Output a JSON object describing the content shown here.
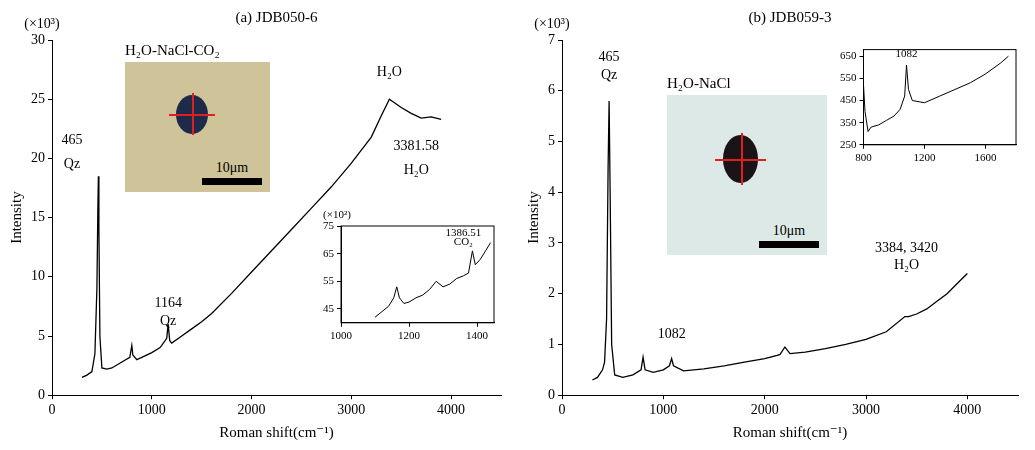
{
  "chart_data": [
    {
      "type": "line",
      "title": "(a) JDB050-6",
      "fluid": "H₂O-NaCl-CO₂",
      "x_label": "Roman shift(cm⁻¹)",
      "y_label": "Intensity",
      "y_multiplier": "(×10³)",
      "x": [
        300,
        350,
        400,
        430,
        450,
        460,
        465,
        470,
        480,
        500,
        550,
        600,
        700,
        780,
        800,
        810,
        850,
        900,
        1000,
        1080,
        1100,
        1150,
        1164,
        1180,
        1200,
        1300,
        1400,
        1500,
        1600,
        1800,
        2000,
        2200,
        2400,
        2600,
        2800,
        3000,
        3200,
        3300,
        3381.58,
        3450,
        3500,
        3600,
        3700,
        3800,
        3900
      ],
      "values": [
        1.5,
        1.7,
        2.0,
        3.5,
        9,
        16,
        18.5,
        14,
        5,
        2.3,
        2.2,
        2.3,
        2.8,
        3.2,
        4.2,
        3.4,
        3.0,
        3.2,
        3.6,
        4.0,
        4.2,
        4.8,
        6.0,
        4.6,
        4.4,
        5.0,
        5.6,
        6.2,
        6.9,
        8.6,
        10.4,
        12.2,
        14.0,
        15.8,
        17.6,
        19.6,
        21.8,
        23.6,
        25.0,
        24.6,
        24.3,
        23.8,
        23.4,
        23.5,
        23.3
      ],
      "color": "#000000",
      "xlim": [
        0,
        4500
      ],
      "ylim": [
        0,
        30
      ],
      "xticks": [
        0,
        1000,
        2000,
        3000,
        4000
      ],
      "yticks": [
        0,
        5,
        10,
        15,
        20,
        25,
        30
      ],
      "grid": false,
      "annotations": [
        {
          "text": "465",
          "x": 200,
          "y": 21.5
        },
        {
          "text": "Qz",
          "x": 200,
          "y": 19.5
        },
        {
          "text": "1164",
          "x": 1164,
          "y": 7.8
        },
        {
          "text": "Qz",
          "x": 1164,
          "y": 6.2
        },
        {
          "text": "H₂O",
          "x": 3381.58,
          "y": 27.3
        },
        {
          "text": "3381.58",
          "x": 3650,
          "y": 21
        },
        {
          "text": "H₂O",
          "x": 3650,
          "y": 19
        }
      ],
      "photo": {
        "scale_bar": "10μm"
      },
      "inset": {
        "y_multiplier": "(×10²)",
        "x": [
          1100,
          1120,
          1140,
          1155,
          1164,
          1172,
          1185,
          1200,
          1220,
          1240,
          1260,
          1280,
          1300,
          1320,
          1340,
          1360,
          1375,
          1386.51,
          1395,
          1410,
          1425,
          1440
        ],
        "values": [
          42,
          44,
          46,
          49,
          53,
          49,
          47,
          47.5,
          49,
          50,
          52,
          55,
          53,
          54,
          56,
          57,
          58,
          66,
          61,
          63,
          66,
          69
        ],
        "xlim": [
          1000,
          1450
        ],
        "ylim": [
          40,
          75
        ],
        "xticks": [
          1000,
          1200,
          1400
        ],
        "yticks": [
          45,
          55,
          65,
          75
        ],
        "annotations": [
          {
            "text": "1386.51",
            "x": 1360,
            "y": 72.5
          },
          {
            "text": "CO₂",
            "x": 1360,
            "y": 69
          }
        ]
      }
    },
    {
      "type": "line",
      "title": "(b) JDB059-3",
      "fluid": "H₂O-NaCl",
      "x_label": "Roman shift(cm⁻¹)",
      "y_label": "Intensity",
      "y_multiplier": "(×10³)",
      "x": [
        300,
        350,
        400,
        420,
        440,
        455,
        465,
        475,
        490,
        520,
        600,
        700,
        780,
        800,
        820,
        900,
        1000,
        1060,
        1082,
        1100,
        1200,
        1400,
        1600,
        1800,
        2000,
        2150,
        2200,
        2250,
        2400,
        2600,
        2800,
        3000,
        3200,
        3384,
        3420,
        3500,
        3600,
        3700,
        3800,
        3900,
        4000
      ],
      "values": [
        0.3,
        0.35,
        0.5,
        0.65,
        1.5,
        4.5,
        5.8,
        4.0,
        1.0,
        0.4,
        0.35,
        0.4,
        0.5,
        0.75,
        0.5,
        0.45,
        0.5,
        0.58,
        0.72,
        0.58,
        0.48,
        0.52,
        0.58,
        0.65,
        0.72,
        0.8,
        0.95,
        0.82,
        0.85,
        0.92,
        1.0,
        1.1,
        1.25,
        1.55,
        1.55,
        1.6,
        1.7,
        1.85,
        2.0,
        2.2,
        2.4
      ],
      "color": "#000000",
      "xlim": [
        0,
        4500
      ],
      "ylim": [
        0,
        7
      ],
      "xticks": [
        0,
        1000,
        2000,
        3000,
        4000
      ],
      "yticks": [
        0,
        1,
        2,
        3,
        4,
        5,
        6,
        7
      ],
      "grid": false,
      "annotations": [
        {
          "text": "465",
          "x": 465,
          "y": 6.65
        },
        {
          "text": "Qz",
          "x": 465,
          "y": 6.3
        },
        {
          "text": "1082",
          "x": 1082,
          "y": 1.2
        },
        {
          "text": "3384, 3420",
          "x": 3400,
          "y": 2.9
        },
        {
          "text": "H₂O",
          "x": 3400,
          "y": 2.55
        }
      ],
      "photo": {
        "scale_bar": "10μm"
      },
      "inset": {
        "x": [
          800,
          810,
          830,
          850,
          900,
          950,
          1000,
          1040,
          1070,
          1082,
          1095,
          1120,
          1200,
          1300,
          1400,
          1500,
          1600,
          1700,
          1750
        ],
        "values": [
          520,
          400,
          310,
          330,
          340,
          360,
          380,
          410,
          470,
          610,
          500,
          450,
          440,
          470,
          500,
          530,
          570,
          620,
          650
        ],
        "xlim": [
          800,
          1800
        ],
        "ylim": [
          250,
          680
        ],
        "xticks": [
          800,
          1200,
          1600
        ],
        "yticks": [
          250,
          350,
          450,
          550,
          650
        ],
        "annotations": [
          {
            "text": "1082",
            "x": 1082,
            "y": 660
          }
        ]
      }
    }
  ]
}
